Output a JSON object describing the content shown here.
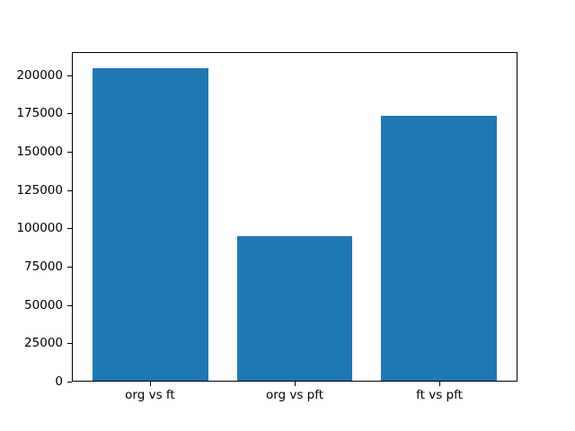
{
  "figure": {
    "background_color": "#ffffff",
    "spine_color": "#000000",
    "tick_color": "#000000",
    "text_color": "#000000"
  },
  "chart_data": {
    "type": "bar",
    "title": "",
    "xlabel": "",
    "ylabel": "",
    "categories": [
      "org vs ft",
      "org vs pft",
      "ft vs pft"
    ],
    "values": [
      205000,
      95000,
      173500
    ],
    "bar_color": "#1f77b4",
    "ylim": [
      0,
      215000
    ],
    "yticks": [
      0,
      25000,
      50000,
      75000,
      100000,
      125000,
      150000,
      175000,
      200000
    ],
    "ytick_labels": [
      "0",
      "25000",
      "50000",
      "75000",
      "100000",
      "125000",
      "150000",
      "175000",
      "200000"
    ],
    "grid": false,
    "legend_position": "none",
    "bar_width_fraction": 0.8
  }
}
